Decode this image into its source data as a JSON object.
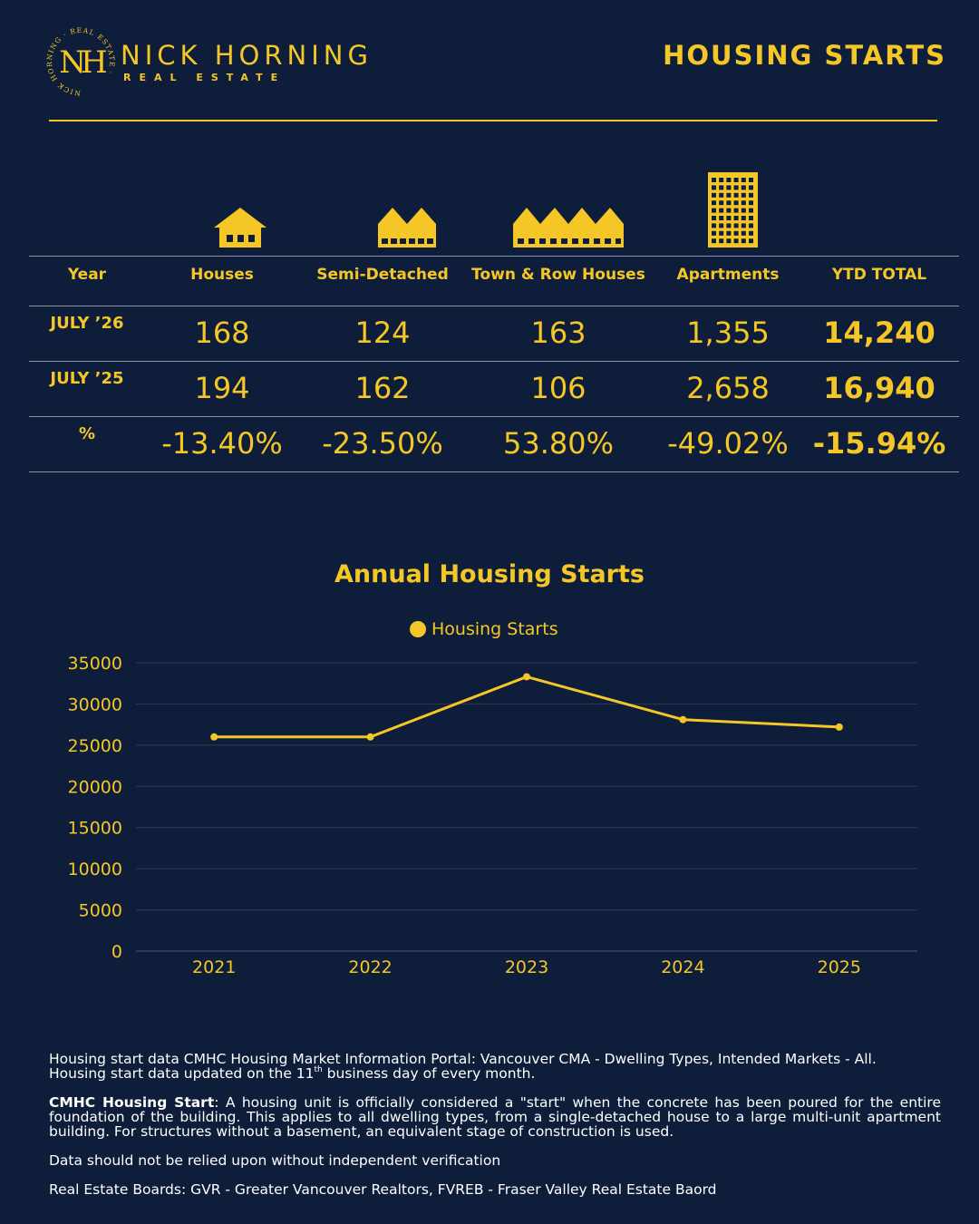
{
  "header": {
    "brand_name": "NICK HORNING",
    "brand_sub": "REAL ESTATE",
    "logo_initials": "NH",
    "logo_ring_text": "NICK HORNING · REAL ESTATE ·",
    "page_title": "HOUSING STARTS"
  },
  "table": {
    "columns": [
      "Year",
      "Houses",
      "Semi-Detached",
      "Town & Row Houses",
      "Apartments",
      "YTD TOTAL"
    ],
    "column_icons": [
      "",
      "house-icon",
      "semi-detached-icon",
      "townhouse-row-icon",
      "apartment-building-icon",
      ""
    ],
    "rows": [
      {
        "label": "JULY ’26",
        "values": [
          "168",
          "124",
          "163",
          "1,355",
          "14,240"
        ]
      },
      {
        "label": "JULY ’25",
        "values": [
          "194",
          "162",
          "106",
          "2,658",
          "16,940"
        ]
      },
      {
        "label": "%",
        "values": [
          "-13.40%",
          "-23.50%",
          "53.80%",
          "-49.02%",
          "-15.94%"
        ]
      }
    ]
  },
  "chart_data": {
    "type": "line",
    "title": "Annual Housing Starts",
    "xlabel": "",
    "ylabel": "",
    "categories": [
      "2021",
      "2022",
      "2023",
      "2024",
      "2025"
    ],
    "series": [
      {
        "name": "Housing Starts",
        "values": [
          26000,
          26000,
          33300,
          28100,
          27200
        ]
      }
    ],
    "ylim": [
      0,
      35000
    ],
    "yticks": [
      "0",
      "5000",
      "10000",
      "15000",
      "20000",
      "25000",
      "30000",
      "35000"
    ],
    "grid": true,
    "legend_position": "top-center",
    "color": "#f5c726"
  },
  "footer": {
    "source_line1": "Housing start data CMHC Housing Market Information Portal: Vancouver CMA - Dwelling Types, Intended Markets - All.",
    "source_line2_pre": "Housing start data updated on the 11",
    "source_line2_sup": "th",
    "source_line2_post": " business day of every month.",
    "definition_title": "CMHC Housing Start",
    "definition_text": ": A housing unit is officially considered a \"start\" when the concrete has been poured for the entire foundation of the building. This applies to all dwelling types, from a single-detached house to a large multi-unit apartment building. For structures without a basement, an equivalent stage of construction is used.",
    "disclaimer": "Data should not be relied upon without independent verification",
    "boards": "Real Estate Boards:  GVR - Greater Vancouver Realtors, FVREB - Fraser Valley Real Estate Baord"
  }
}
